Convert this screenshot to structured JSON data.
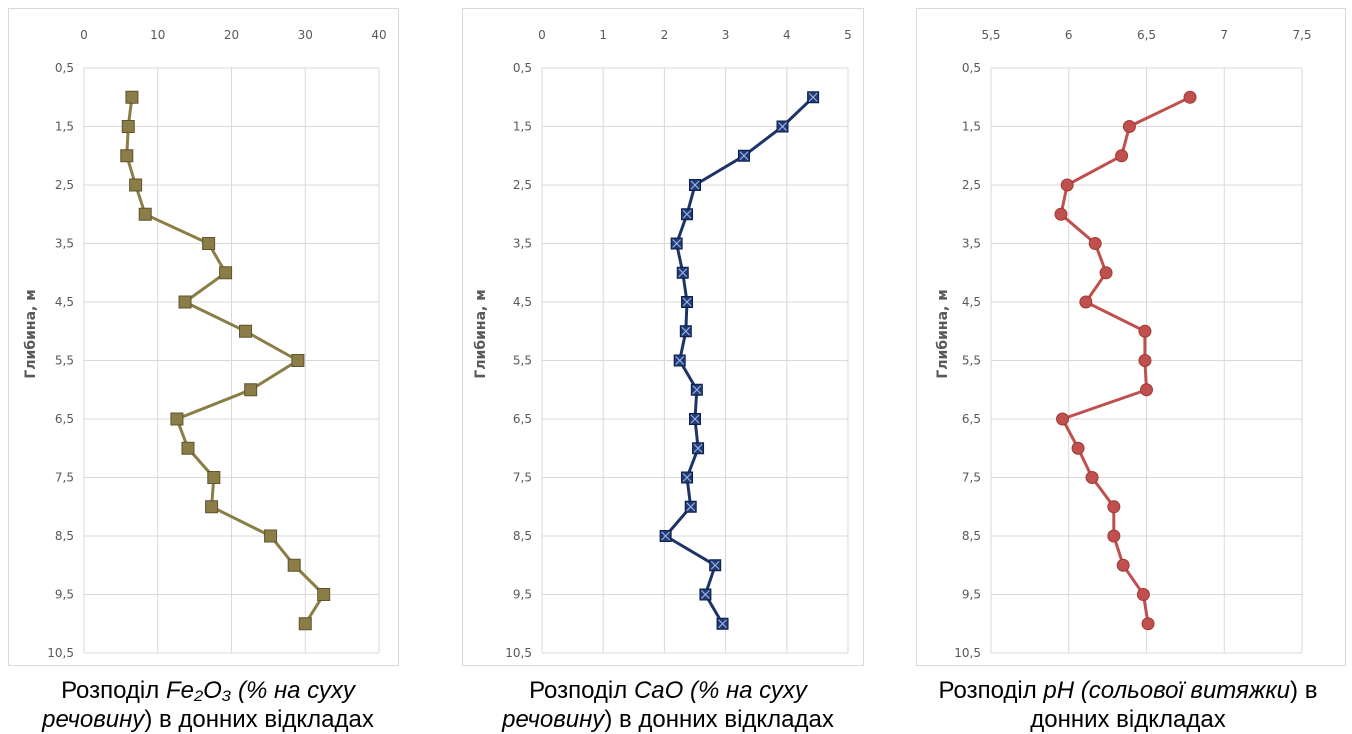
{
  "chart_data": [
    {
      "type": "line",
      "ylabel": "Глибина, м",
      "xlim": [
        0,
        40
      ],
      "xticks": [
        "0",
        "10",
        "20",
        "30",
        "40"
      ],
      "ylim": [
        0.5,
        10.5
      ],
      "y_inverted": true,
      "yticks": [
        "0,5",
        "1,5",
        "2,5",
        "3,5",
        "4,5",
        "5,5",
        "6,5",
        "7,5",
        "8,5",
        "9,5",
        "10,5"
      ],
      "grid": true,
      "marker": "square",
      "color": "#8b7d46",
      "marker_color": "#8b7d46",
      "series": [
        {
          "x": [
            6.5,
            6,
            5.8,
            7,
            8.3,
            16.9,
            19.2,
            13.7,
            21.9,
            29,
            22.6,
            12.6,
            14.1,
            17.6,
            17.3,
            25.3,
            28.5,
            32.5,
            30
          ],
          "y": [
            1,
            1.5,
            2,
            2.5,
            3,
            3.5,
            4,
            4.5,
            5,
            5.5,
            6,
            6.5,
            7,
            7.5,
            8,
            8.5,
            9,
            9.5,
            10
          ]
        }
      ],
      "caption": {
        "prefix": "Розподіл ",
        "italic1": "Fe₂O₃ (% на суху речовину",
        "suffix": ") в донних відкладах"
      }
    },
    {
      "type": "line",
      "ylabel": "Глибина, м",
      "xlim": [
        0,
        5
      ],
      "xticks": [
        "0",
        "1",
        "2",
        "3",
        "4",
        "5"
      ],
      "ylim": [
        0.5,
        10.5
      ],
      "y_inverted": true,
      "yticks": [
        "0,5",
        "1,5",
        "2,5",
        "3,5",
        "4,5",
        "5,5",
        "6,5",
        "7,5",
        "8,5",
        "9,5",
        "10,5"
      ],
      "grid": true,
      "marker": "square-x",
      "color": "#1f3466",
      "marker_color": "#1f3b7a",
      "series": [
        {
          "x": [
            4.43,
            3.93,
            3.3,
            2.5,
            2.37,
            2.2,
            2.3,
            2.37,
            2.35,
            2.25,
            2.53,
            2.5,
            2.55,
            2.37,
            2.43,
            2.02,
            2.83,
            2.67,
            2.95
          ],
          "y": [
            1,
            1.5,
            2,
            2.5,
            3,
            3.5,
            4,
            4.5,
            5,
            5.5,
            6,
            6.5,
            7,
            7.5,
            8,
            8.5,
            9,
            9.5,
            10
          ]
        }
      ],
      "caption": {
        "prefix": "Розподіл ",
        "italic1": "CaO (% на суху речовину",
        "suffix": ") в донних відкладах"
      }
    },
    {
      "type": "line",
      "ylabel": "Глибина, м",
      "xlim": [
        5.5,
        7.5
      ],
      "xticks": [
        "5,5",
        "6",
        "6,5",
        "7",
        "7,5"
      ],
      "ylim": [
        0.5,
        10.5
      ],
      "y_inverted": true,
      "yticks": [
        "0,5",
        "1,5",
        "2,5",
        "3,5",
        "4,5",
        "5,5",
        "6,5",
        "7,5",
        "8,5",
        "9,5",
        "10,5"
      ],
      "grid": true,
      "marker": "circle",
      "color": "#c0504d",
      "marker_color": "#c0504d",
      "series": [
        {
          "x": [
            6.78,
            6.39,
            6.34,
            5.99,
            5.95,
            6.17,
            6.24,
            6.11,
            6.49,
            6.49,
            6.5,
            5.96,
            6.06,
            6.15,
            6.29,
            6.29,
            6.35,
            6.48,
            6.51
          ],
          "y": [
            1,
            1.5,
            2,
            2.5,
            3,
            3.5,
            4,
            4.5,
            5,
            5.5,
            6,
            6.5,
            7,
            7.5,
            8,
            8.5,
            9,
            9.5,
            10
          ]
        }
      ],
      "caption": {
        "prefix": "Розподіл ",
        "italic1": "pH (сольової витяжки",
        "suffix": ") в донних відкладах"
      }
    }
  ]
}
